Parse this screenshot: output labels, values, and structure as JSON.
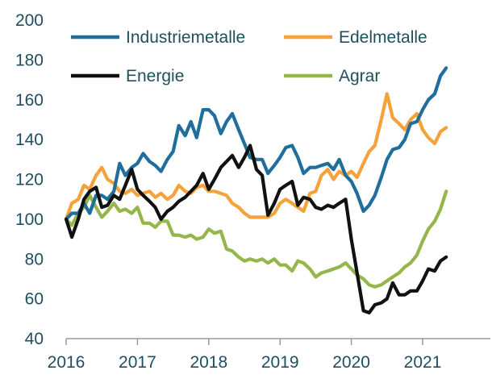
{
  "chart_data": {
    "type": "line",
    "title": "",
    "xlabel": "",
    "ylabel": "",
    "xlim": [
      2016,
      2021.95
    ],
    "ylim": [
      40,
      200
    ],
    "yticks": [
      40,
      60,
      80,
      100,
      120,
      140,
      160,
      180,
      200
    ],
    "xticks": [
      2016,
      2017,
      2018,
      2019,
      2020,
      2021
    ],
    "xtick_labels": [
      "2016",
      "2017",
      "2018",
      "2019",
      "2020",
      "2021"
    ],
    "ytick_labels": [
      "40",
      "60",
      "80",
      "100",
      "120",
      "140",
      "160",
      "180",
      "200"
    ],
    "grid": false,
    "legend_position": "top",
    "series": [
      {
        "name": "Industriemetalle",
        "color": "#1f6e9c",
        "x": [
          2016.0,
          2016.08,
          2016.17,
          2016.25,
          2016.33,
          2016.42,
          2016.5,
          2016.58,
          2016.67,
          2016.75,
          2016.83,
          2016.92,
          2017.0,
          2017.08,
          2017.17,
          2017.25,
          2017.33,
          2017.42,
          2017.5,
          2017.58,
          2017.67,
          2017.75,
          2017.83,
          2017.92,
          2018.0,
          2018.08,
          2018.17,
          2018.25,
          2018.33,
          2018.42,
          2018.5,
          2018.58,
          2018.67,
          2018.75,
          2018.83,
          2018.92,
          2019.0,
          2019.08,
          2019.17,
          2019.25,
          2019.33,
          2019.42,
          2019.5,
          2019.58,
          2019.67,
          2019.75,
          2019.83,
          2019.92,
          2020.0,
          2020.08,
          2020.17,
          2020.25,
          2020.33,
          2020.42,
          2020.5,
          2020.58,
          2020.67,
          2020.75,
          2020.83,
          2020.92,
          2021.0,
          2021.08,
          2021.17,
          2021.25,
          2021.33
        ],
        "values": [
          100,
          103,
          103,
          108,
          103,
          112,
          112,
          110,
          114,
          128,
          122,
          126,
          128,
          133,
          129,
          127,
          124,
          130,
          134,
          147,
          142,
          149,
          141,
          155,
          155,
          152,
          143,
          149,
          153,
          145,
          138,
          131,
          130,
          130,
          123,
          127,
          131,
          136,
          137,
          131,
          123,
          126,
          126,
          127,
          128,
          125,
          130,
          122,
          119,
          113,
          104,
          107,
          112,
          121,
          130,
          135,
          136,
          140,
          148,
          149,
          155,
          160,
          163,
          172,
          176
        ]
      },
      {
        "name": "Edelmetalle",
        "color": "#f5a23b",
        "x": [
          2016.0,
          2016.08,
          2016.17,
          2016.25,
          2016.33,
          2016.42,
          2016.5,
          2016.58,
          2016.67,
          2016.75,
          2016.83,
          2016.92,
          2017.0,
          2017.08,
          2017.17,
          2017.25,
          2017.33,
          2017.42,
          2017.5,
          2017.58,
          2017.67,
          2017.75,
          2017.83,
          2017.92,
          2018.0,
          2018.08,
          2018.17,
          2018.25,
          2018.33,
          2018.42,
          2018.5,
          2018.58,
          2018.67,
          2018.75,
          2018.83,
          2018.92,
          2019.0,
          2019.08,
          2019.17,
          2019.25,
          2019.33,
          2019.42,
          2019.5,
          2019.58,
          2019.67,
          2019.75,
          2019.83,
          2019.92,
          2020.0,
          2020.08,
          2020.17,
          2020.25,
          2020.33,
          2020.42,
          2020.5,
          2020.58,
          2020.67,
          2020.75,
          2020.83,
          2020.92,
          2021.0,
          2021.08,
          2021.17,
          2021.25,
          2021.33
        ],
        "values": [
          100,
          108,
          110,
          117,
          115,
          122,
          126,
          120,
          118,
          114,
          113,
          115,
          112,
          113,
          114,
          111,
          113,
          110,
          112,
          117,
          114,
          113,
          116,
          117,
          114,
          114,
          113,
          112,
          108,
          106,
          103,
          101,
          101,
          101,
          101,
          103,
          108,
          110,
          108,
          106,
          104,
          113,
          114,
          122,
          125,
          120,
          124,
          122,
          124,
          121,
          128,
          134,
          137,
          150,
          163,
          151,
          148,
          145,
          150,
          153,
          145,
          141,
          138,
          144,
          146
        ]
      },
      {
        "name": "Energie",
        "color": "#111111",
        "x": [
          2016.0,
          2016.08,
          2016.17,
          2016.25,
          2016.33,
          2016.42,
          2016.5,
          2016.58,
          2016.67,
          2016.75,
          2016.83,
          2016.92,
          2017.0,
          2017.08,
          2017.17,
          2017.25,
          2017.33,
          2017.42,
          2017.5,
          2017.58,
          2017.67,
          2017.75,
          2017.83,
          2017.92,
          2018.0,
          2018.08,
          2018.17,
          2018.25,
          2018.33,
          2018.42,
          2018.5,
          2018.58,
          2018.67,
          2018.75,
          2018.83,
          2018.92,
          2019.0,
          2019.08,
          2019.17,
          2019.25,
          2019.33,
          2019.42,
          2019.5,
          2019.58,
          2019.67,
          2019.75,
          2019.83,
          2019.92,
          2020.0,
          2020.08,
          2020.17,
          2020.25,
          2020.33,
          2020.42,
          2020.5,
          2020.58,
          2020.67,
          2020.75,
          2020.83,
          2020.92,
          2021.0,
          2021.08,
          2021.17,
          2021.25,
          2021.33
        ],
        "values": [
          100,
          91,
          100,
          110,
          114,
          116,
          106,
          107,
          112,
          110,
          117,
          125,
          115,
          112,
          109,
          106,
          100,
          104,
          106,
          109,
          111,
          114,
          117,
          123,
          115,
          120,
          126,
          129,
          132,
          126,
          131,
          137,
          125,
          122,
          102,
          108,
          115,
          117,
          119,
          107,
          111,
          110,
          106,
          105,
          107,
          106,
          108,
          110,
          90,
          73,
          54,
          53,
          57,
          58,
          60,
          68,
          62,
          62,
          64,
          64,
          69,
          75,
          74,
          79,
          81
        ]
      },
      {
        "name": "Agrar",
        "color": "#94b64a",
        "x": [
          2016.0,
          2016.08,
          2016.17,
          2016.25,
          2016.33,
          2016.42,
          2016.5,
          2016.58,
          2016.67,
          2016.75,
          2016.83,
          2016.92,
          2017.0,
          2017.08,
          2017.17,
          2017.25,
          2017.33,
          2017.42,
          2017.5,
          2017.58,
          2017.67,
          2017.75,
          2017.83,
          2017.92,
          2018.0,
          2018.08,
          2018.17,
          2018.25,
          2018.33,
          2018.42,
          2018.5,
          2018.58,
          2018.67,
          2018.75,
          2018.83,
          2018.92,
          2019.0,
          2019.08,
          2019.17,
          2019.25,
          2019.33,
          2019.42,
          2019.5,
          2019.58,
          2019.67,
          2019.75,
          2019.83,
          2019.92,
          2020.0,
          2020.08,
          2020.17,
          2020.25,
          2020.33,
          2020.42,
          2020.5,
          2020.58,
          2020.67,
          2020.75,
          2020.83,
          2020.92,
          2021.0,
          2021.08,
          2021.17,
          2021.25,
          2021.33
        ],
        "values": [
          100,
          97,
          103,
          106,
          112,
          106,
          101,
          104,
          108,
          104,
          105,
          103,
          106,
          98,
          98,
          96,
          99,
          99,
          92,
          92,
          91,
          92,
          90,
          91,
          95,
          93,
          94,
          85,
          84,
          81,
          79,
          80,
          79,
          80,
          78,
          80,
          77,
          77,
          74,
          79,
          78,
          75,
          71,
          73,
          74,
          75,
          76,
          78,
          75,
          72,
          70,
          67,
          66,
          67,
          69,
          71,
          73,
          76,
          78,
          82,
          89,
          95,
          99,
          105,
          114
        ]
      }
    ]
  }
}
